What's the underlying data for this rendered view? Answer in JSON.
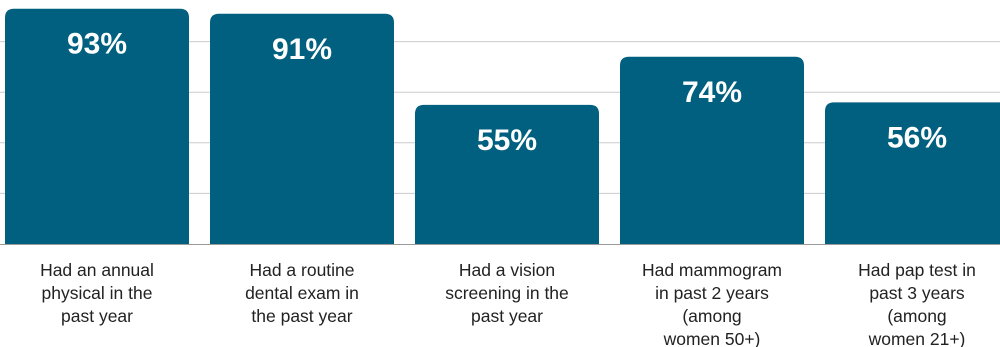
{
  "colors": {
    "bar": "#01607f",
    "grid": "#cccccc",
    "baseline": "#9a9a9a",
    "value_text": "#ffffff",
    "label_text": "#222222"
  },
  "chart_data": {
    "type": "bar",
    "title": "",
    "xlabel": "",
    "ylabel": "",
    "ylim": [
      0,
      100
    ],
    "grid": true,
    "categories": [
      "Had an annual physical in the past year",
      "Had a routine dental exam in the past year",
      "Had a vision screening in the past year",
      "Had mammogram in past 2 years (among women 50+)",
      "Had pap test in past 3 years (among women 21+)"
    ],
    "category_lines": [
      [
        "Had an annual",
        "physical in the",
        "past year"
      ],
      [
        "Had a routine",
        "dental exam in",
        "the past year"
      ],
      [
        "Had a vision",
        "screening in the",
        "past year"
      ],
      [
        "Had mammogram",
        "in past 2 years",
        "(among",
        "women 50+)"
      ],
      [
        "Had pap test in",
        "past 3 years",
        "(among",
        "women 21+)"
      ]
    ],
    "values": [
      93,
      91,
      55,
      74,
      56
    ],
    "value_labels": [
      "93%",
      "91%",
      "55%",
      "74%",
      "56%"
    ]
  }
}
